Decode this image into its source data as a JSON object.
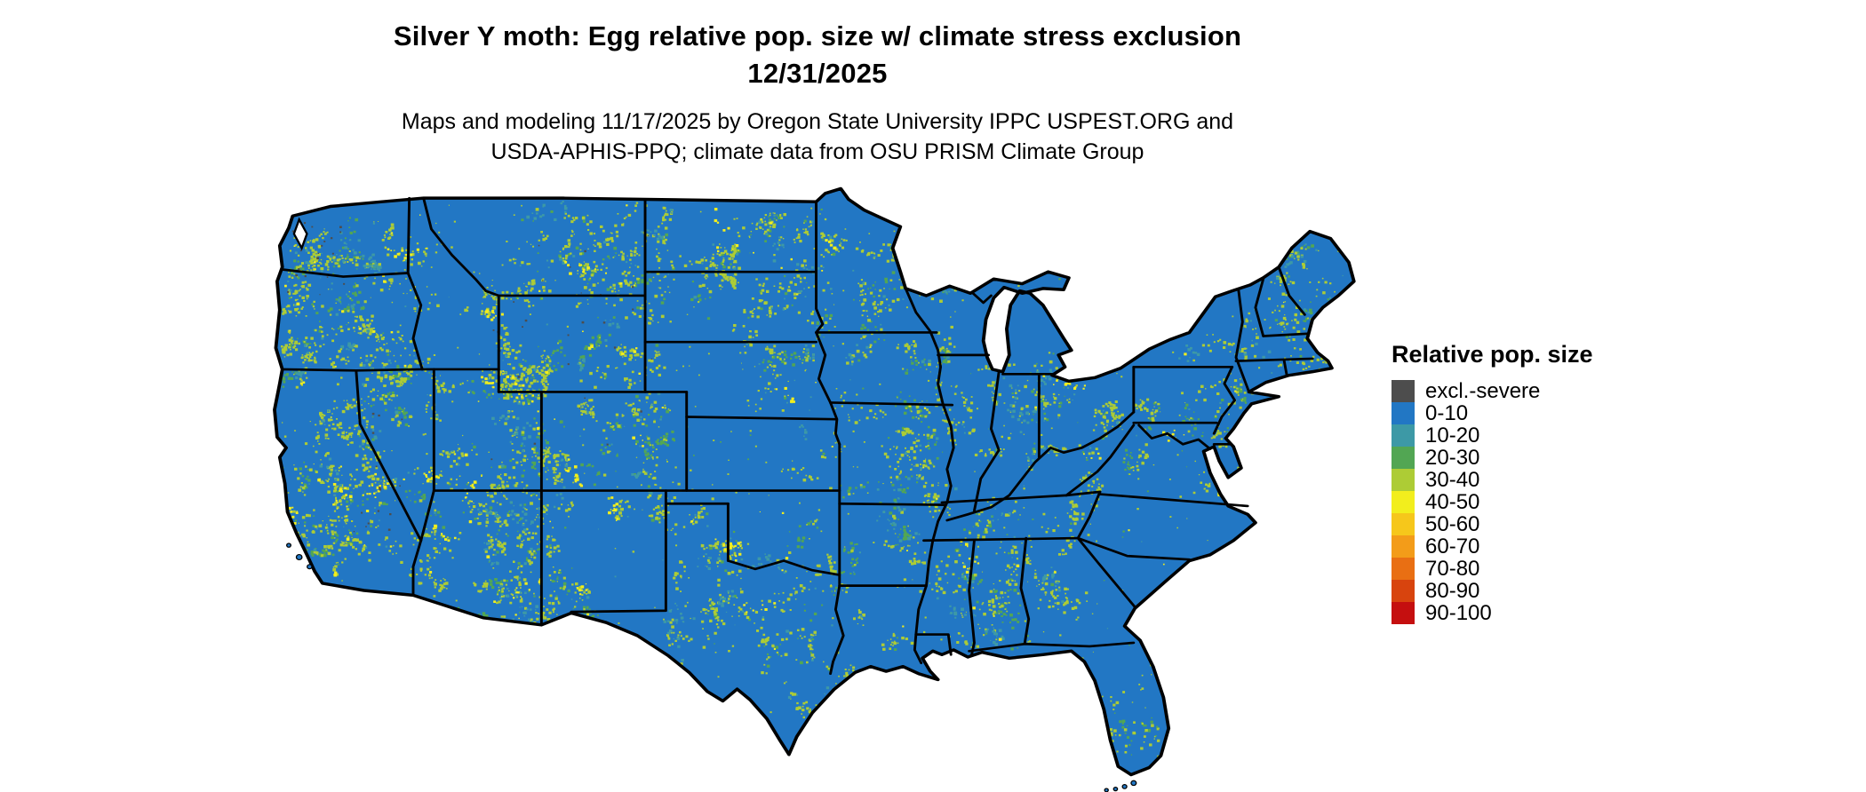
{
  "header": {
    "title_line1": "Silver Y moth: Egg relative pop. size w/ climate stress exclusion",
    "title_line2": "12/31/2025",
    "subtitle_line1": "Maps and modeling 11/17/2025 by Oregon State University IPPC USPEST.ORG and",
    "subtitle_line2": "USDA-APHIS-PPQ; climate data from OSU PRISM Climate Group"
  },
  "legend": {
    "title": "Relative pop. size",
    "items": [
      {
        "label": "excl.-severe",
        "color": "#4d4d4d"
      },
      {
        "label": "0-10",
        "color": "#2277c4"
      },
      {
        "label": "10-20",
        "color": "#3d99a6"
      },
      {
        "label": "20-30",
        "color": "#52a653"
      },
      {
        "label": "30-40",
        "color": "#adcc35"
      },
      {
        "label": "40-50",
        "color": "#f2ee1d"
      },
      {
        "label": "50-60",
        "color": "#f6c71b"
      },
      {
        "label": "60-70",
        "color": "#f39c19"
      },
      {
        "label": "70-80",
        "color": "#e96f13"
      },
      {
        "label": "80-90",
        "color": "#d8440e"
      },
      {
        "label": "90-100",
        "color": "#c50f0f"
      }
    ]
  },
  "map": {
    "region_depicted": "contiguous United States",
    "base_color": "#2277c4",
    "border_color": "#000000",
    "background_color": "#ffffff",
    "exclusion_color": "#4d4d4d",
    "speckle_colors": [
      "#adcc35",
      "#52a653",
      "#3d99a6",
      "#f2ee1d"
    ]
  }
}
